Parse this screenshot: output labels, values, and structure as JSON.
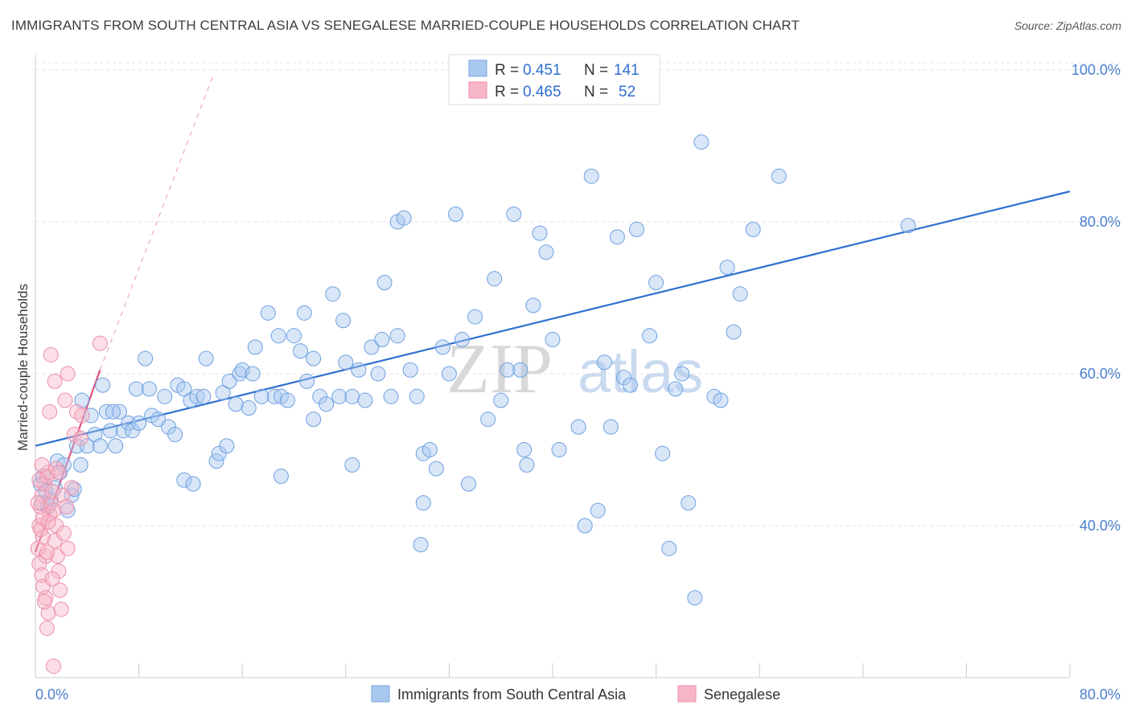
{
  "header": {
    "title": "IMMIGRANTS FROM SOUTH CENTRAL ASIA VS SENEGALESE MARRIED-COUPLE HOUSEHOLDS CORRELATION CHART",
    "source": "Source: ZipAtlas.com"
  },
  "watermark": {
    "zip": "ZIP",
    "atlas": "atlas"
  },
  "legend": {
    "rows": [
      {
        "r_label": "R = ",
        "r_value": "0.451",
        "n_label": "N = ",
        "n_value": "141",
        "color": "#a9c8f0"
      },
      {
        "r_label": "R = ",
        "r_value": "0.465",
        "n_label": "N = ",
        "n_value": "52",
        "color": "#f7b6c8"
      }
    ]
  },
  "chart_data": {
    "type": "scatter",
    "title": "IMMIGRANTS FROM SOUTH CENTRAL ASIA VS SENEGALESE MARRIED-COUPLE HOUSEHOLDS CORRELATION CHART",
    "xlabel": "",
    "ylabel": "Married-couple Households",
    "xlim": [
      0,
      80
    ],
    "ylim": [
      20,
      102
    ],
    "x_tick_labels": [
      "0.0%",
      "80.0%"
    ],
    "y_tick_values": [
      40,
      60,
      80,
      100
    ],
    "y_tick_labels": [
      "40.0%",
      "60.0%",
      "80.0%",
      "100.0%"
    ],
    "grid": true,
    "legend_position": "top-center",
    "series": [
      {
        "name": "Immigrants from South Central Asia",
        "color": "#6fa0e0",
        "fill": "#a9c8f0",
        "trend": {
          "x": [
            0,
            80
          ],
          "y": [
            50.5,
            84.0
          ],
          "style": "solid",
          "color": "#2f6fd0"
        },
        "points": [
          [
            0.4,
            45.5
          ],
          [
            0.5,
            43.0
          ],
          [
            0.6,
            46.5
          ],
          [
            0.8,
            44.5
          ],
          [
            1.0,
            42.5
          ],
          [
            1.2,
            43.5
          ],
          [
            1.5,
            45.0
          ],
          [
            1.7,
            48.5
          ],
          [
            1.9,
            47.0
          ],
          [
            2.2,
            48.0
          ],
          [
            2.5,
            42.0
          ],
          [
            2.8,
            44.0
          ],
          [
            3.0,
            44.8
          ],
          [
            3.2,
            50.5
          ],
          [
            3.5,
            48.0
          ],
          [
            4.0,
            50.5
          ],
          [
            4.3,
            54.5
          ],
          [
            4.6,
            52.0
          ],
          [
            5.0,
            50.5
          ],
          [
            5.2,
            58.5
          ],
          [
            5.5,
            55.0
          ],
          [
            5.8,
            52.5
          ],
          [
            6.2,
            50.5
          ],
          [
            6.5,
            55.0
          ],
          [
            6.8,
            52.5
          ],
          [
            7.2,
            53.5
          ],
          [
            7.5,
            52.5
          ],
          [
            7.8,
            58.0
          ],
          [
            8.0,
            53.5
          ],
          [
            8.5,
            62.0
          ],
          [
            8.8,
            58.0
          ],
          [
            9.0,
            54.5
          ],
          [
            9.5,
            54.0
          ],
          [
            10.0,
            57.0
          ],
          [
            10.3,
            53.0
          ],
          [
            10.8,
            52.0
          ],
          [
            11.0,
            58.5
          ],
          [
            11.5,
            58.0
          ],
          [
            12.0,
            56.5
          ],
          [
            12.5,
            57.0
          ],
          [
            13.0,
            57.0
          ],
          [
            13.2,
            62.0
          ],
          [
            14.0,
            48.5
          ],
          [
            14.2,
            49.5
          ],
          [
            14.5,
            57.5
          ],
          [
            15.0,
            59.0
          ],
          [
            15.5,
            56.0
          ],
          [
            15.8,
            60.0
          ],
          [
            16.0,
            60.5
          ],
          [
            16.5,
            55.5
          ],
          [
            16.8,
            60.0
          ],
          [
            17.0,
            63.5
          ],
          [
            17.5,
            57.0
          ],
          [
            18.0,
            68.0
          ],
          [
            18.5,
            57.0
          ],
          [
            18.8,
            65.0
          ],
          [
            19.0,
            57.0
          ],
          [
            19.5,
            56.5
          ],
          [
            20.0,
            65.0
          ],
          [
            20.5,
            63.0
          ],
          [
            20.8,
            68.0
          ],
          [
            21.0,
            59.0
          ],
          [
            21.5,
            62.0
          ],
          [
            22.0,
            57.0
          ],
          [
            22.5,
            56.0
          ],
          [
            23.0,
            70.5
          ],
          [
            23.5,
            57.0
          ],
          [
            23.8,
            67.0
          ],
          [
            24.0,
            61.5
          ],
          [
            24.5,
            57.0
          ],
          [
            25.0,
            60.5
          ],
          [
            25.5,
            56.5
          ],
          [
            26.0,
            63.5
          ],
          [
            26.5,
            60.0
          ],
          [
            26.8,
            64.5
          ],
          [
            27.0,
            72.0
          ],
          [
            27.5,
            57.0
          ],
          [
            28.0,
            80.0
          ],
          [
            28.5,
            80.5
          ],
          [
            29.0,
            60.5
          ],
          [
            29.5,
            57.0
          ],
          [
            30.0,
            49.5
          ],
          [
            30.5,
            50.0
          ],
          [
            31.0,
            47.5
          ],
          [
            31.5,
            63.5
          ],
          [
            32.0,
            60.0
          ],
          [
            32.5,
            81.0
          ],
          [
            33.0,
            64.5
          ],
          [
            33.5,
            45.5
          ],
          [
            34.0,
            67.5
          ],
          [
            35.0,
            54.0
          ],
          [
            36.0,
            56.5
          ],
          [
            36.5,
            60.5
          ],
          [
            37.0,
            81.0
          ],
          [
            37.5,
            60.5
          ],
          [
            37.8,
            50.0
          ],
          [
            38.0,
            48.0
          ],
          [
            38.5,
            69.0
          ],
          [
            39.0,
            78.5
          ],
          [
            39.5,
            76.0
          ],
          [
            40.0,
            64.5
          ],
          [
            40.5,
            50.0
          ],
          [
            42.0,
            53.0
          ],
          [
            42.5,
            40.0
          ],
          [
            43.0,
            86.0
          ],
          [
            43.5,
            42.0
          ],
          [
            44.0,
            61.5
          ],
          [
            44.5,
            53.0
          ],
          [
            45.0,
            78.0
          ],
          [
            45.5,
            59.5
          ],
          [
            46.0,
            58.5
          ],
          [
            46.5,
            79.0
          ],
          [
            47.5,
            65.0
          ],
          [
            48.0,
            72.0
          ],
          [
            48.5,
            49.5
          ],
          [
            49.0,
            37.0
          ],
          [
            49.5,
            58.0
          ],
          [
            50.0,
            60.0
          ],
          [
            50.5,
            43.0
          ],
          [
            51.0,
            30.5
          ],
          [
            51.5,
            90.5
          ],
          [
            52.5,
            57.0
          ],
          [
            53.0,
            56.5
          ],
          [
            53.5,
            74.0
          ],
          [
            54.0,
            65.5
          ],
          [
            54.5,
            70.5
          ],
          [
            55.5,
            79.0
          ],
          [
            57.5,
            86.0
          ],
          [
            21.5,
            54.0
          ],
          [
            11.5,
            46.0
          ],
          [
            12.2,
            45.5
          ],
          [
            6.0,
            55.0
          ],
          [
            28.0,
            65.0
          ],
          [
            30.0,
            43.0
          ],
          [
            35.5,
            72.5
          ],
          [
            19.0,
            46.5
          ],
          [
            24.5,
            48.0
          ],
          [
            14.8,
            50.5
          ],
          [
            3.6,
            56.5
          ],
          [
            67.5,
            79.5
          ],
          [
            29.8,
            37.5
          ]
        ]
      },
      {
        "name": "Senegalese",
        "color": "#ee8fab",
        "fill": "#f7b6c8",
        "trend": {
          "x": [
            0,
            5.0
          ],
          "y": [
            36.5,
            60.5
          ],
          "style": "solid",
          "color": "#e0507a",
          "ext_x": [
            5.0,
            13.8
          ],
          "ext_y": [
            60.5,
            99.5
          ]
        },
        "points": [
          [
            0.2,
            37.0
          ],
          [
            0.3,
            40.0
          ],
          [
            0.4,
            42.5
          ],
          [
            0.5,
            44.0
          ],
          [
            0.6,
            38.5
          ],
          [
            0.7,
            45.5
          ],
          [
            0.8,
            36.0
          ],
          [
            0.9,
            46.5
          ],
          [
            1.0,
            47.0
          ],
          [
            0.3,
            35.0
          ],
          [
            0.5,
            33.5
          ],
          [
            0.6,
            32.0
          ],
          [
            0.8,
            30.5
          ],
          [
            0.9,
            26.5
          ],
          [
            1.0,
            28.5
          ],
          [
            1.1,
            41.5
          ],
          [
            1.2,
            43.0
          ],
          [
            1.3,
            44.5
          ],
          [
            1.4,
            42.0
          ],
          [
            1.5,
            38.0
          ],
          [
            1.6,
            40.0
          ],
          [
            1.7,
            36.0
          ],
          [
            1.8,
            34.0
          ],
          [
            1.9,
            31.5
          ],
          [
            2.0,
            29.0
          ],
          [
            2.2,
            39.0
          ],
          [
            2.5,
            37.0
          ],
          [
            2.8,
            45.0
          ],
          [
            3.0,
            52.0
          ],
          [
            3.5,
            51.5
          ],
          [
            1.1,
            55.0
          ],
          [
            1.2,
            62.5
          ],
          [
            1.5,
            59.0
          ],
          [
            2.3,
            56.5
          ],
          [
            2.5,
            60.0
          ],
          [
            3.2,
            55.0
          ],
          [
            3.6,
            54.5
          ],
          [
            5.0,
            64.0
          ],
          [
            1.4,
            21.5
          ],
          [
            0.4,
            39.5
          ],
          [
            0.6,
            41.0
          ],
          [
            0.9,
            36.5
          ],
          [
            1.3,
            33.0
          ],
          [
            1.6,
            47.5
          ],
          [
            0.2,
            43.0
          ],
          [
            0.7,
            30.0
          ],
          [
            1.8,
            47.0
          ],
          [
            2.1,
            44.0
          ],
          [
            2.4,
            42.5
          ],
          [
            0.5,
            48.0
          ],
          [
            1.0,
            40.5
          ],
          [
            0.3,
            46.0
          ]
        ]
      }
    ]
  },
  "bottom_legend": {
    "items": [
      {
        "label": "Immigrants from South Central Asia",
        "color": "#a9c8f0"
      },
      {
        "label": "Senegalese",
        "color": "#f7b6c8"
      }
    ]
  }
}
